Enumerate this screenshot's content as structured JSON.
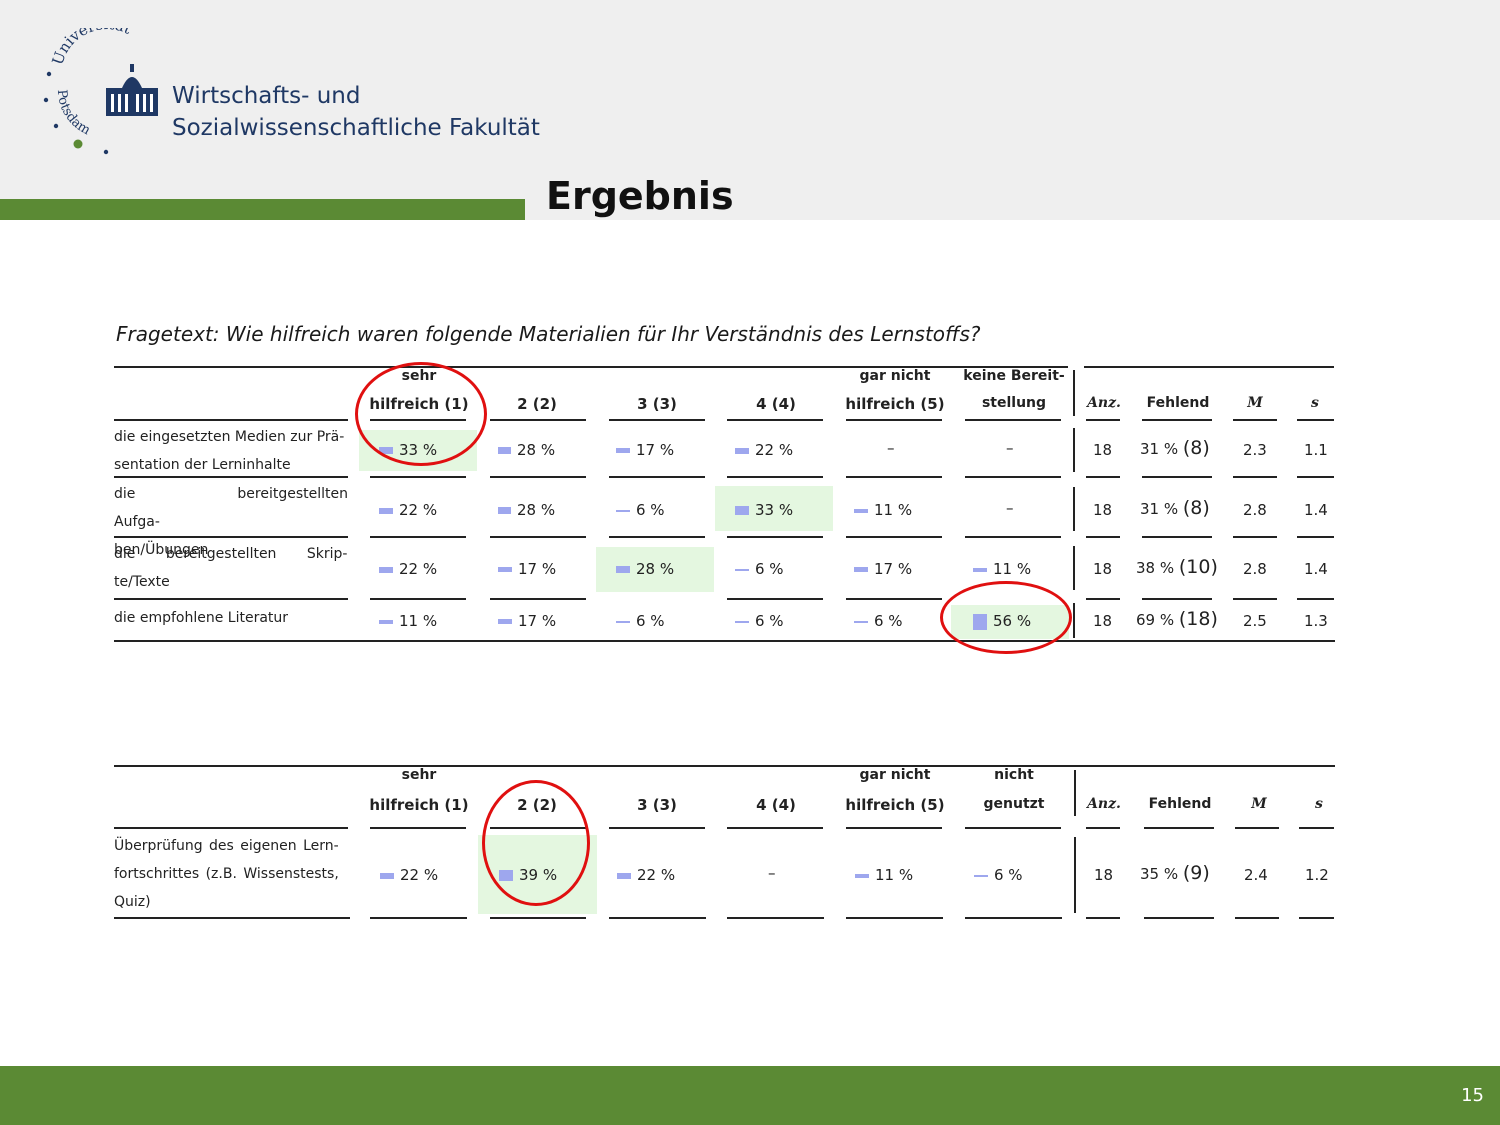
{
  "header": {
    "university": "Universität",
    "city": "Potsdam",
    "faculty_line1": "Wirtschafts- und",
    "faculty_line2": "Sozialwissenschaftliche Fakultät",
    "title": "Ergebnis"
  },
  "footer": {
    "page": "15"
  },
  "question": "Fragetext: Wie hilfreich waren folgende Materialien für Ihr Verständnis des Lernstoffs?",
  "table1": {
    "headers": {
      "c1a": "sehr",
      "c1b": "hilfreich (1)",
      "c2": "2 (2)",
      "c3": "3 (3)",
      "c4": "4 (4)",
      "c5a": "gar nicht",
      "c5b": "hilfreich (5)",
      "c6a": "keine Bereit-",
      "c6b": "stellung",
      "anz": "Anz.",
      "fehlend": "Fehlend",
      "m": "M",
      "s": "s"
    },
    "rows": [
      {
        "l1": "die eingesetzten Medien zur Prä-",
        "l2": "sentation der Lerninhalte",
        "v1": "33 %",
        "v2": "28 %",
        "v3": "17 %",
        "v4": "22 %",
        "v5": "–",
        "v6": "–",
        "anz": "18",
        "fehlend": "31 %",
        "fehlend_n": "(8)",
        "m": "2.3",
        "s": "1.1"
      },
      {
        "l1": "die bereitgestellten Aufga-",
        "l2": "ben/Übungen",
        "v1": "22 %",
        "v2": "28 %",
        "v3": "6 %",
        "v4": "33 %",
        "v5": "11 %",
        "v6": "–",
        "anz": "18",
        "fehlend": "31 %",
        "fehlend_n": "(8)",
        "m": "2.8",
        "s": "1.4"
      },
      {
        "l1": "die bereitgestellten Skrip-",
        "l2": "te/Texte",
        "v1": "22 %",
        "v2": "17 %",
        "v3": "28 %",
        "v4": "6 %",
        "v5": "17 %",
        "v6": "11 %",
        "anz": "18",
        "fehlend": "38 %",
        "fehlend_n": "(10)",
        "m": "2.8",
        "s": "1.4"
      },
      {
        "l1": "die empfohlene Literatur",
        "l2": "",
        "v1": "11 %",
        "v2": "17 %",
        "v3": "6 %",
        "v4": "6 %",
        "v5": "6 %",
        "v6": "56 %",
        "anz": "18",
        "fehlend": "69 %",
        "fehlend_n": "(18)",
        "m": "2.5",
        "s": "1.3"
      }
    ]
  },
  "table2": {
    "headers": {
      "c1a": "sehr",
      "c1b": "hilfreich (1)",
      "c2": "2 (2)",
      "c3": "3 (3)",
      "c4": "4 (4)",
      "c5a": "gar nicht",
      "c5b": "hilfreich (5)",
      "c6a": "nicht",
      "c6b": "genutzt",
      "anz": "Anz.",
      "fehlend": "Fehlend",
      "m": "M",
      "s": "s"
    },
    "row": {
      "l1": "Überprüfung des eigenen Lern-",
      "l2": "fortschrittes (z.B. Wissenstests,",
      "l3": "Quiz)",
      "v1": "22 %",
      "v2": "39 %",
      "v3": "22 %",
      "v4": "–",
      "v5": "11 %",
      "v6": "6 %",
      "anz": "18",
      "fehlend": "35 %",
      "fehlend_n": "(9)",
      "m": "2.4",
      "s": "1.2"
    }
  },
  "colors": {
    "accent_green": "#5b8a34",
    "highlight_green": "#e4f7e0",
    "bar_blue": "#9ea7ee",
    "circle_red": "#e01010",
    "faculty_blue": "#1f3864"
  }
}
